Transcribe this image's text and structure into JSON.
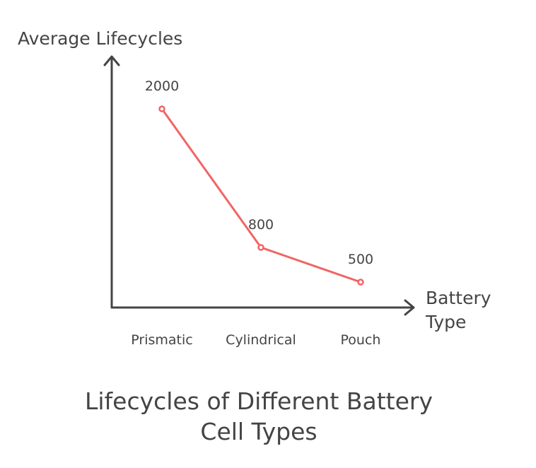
{
  "chart_data": {
    "type": "line",
    "title": "Lifecycles of Different Battery Cell Types",
    "xlabel": "Battery Type",
    "ylabel": "Average Lifecycles",
    "categories": [
      "Prismatic",
      "Cylindrical",
      "Pouch"
    ],
    "series": [
      {
        "values": [
          2000,
          800,
          500
        ]
      }
    ],
    "data_labels": [
      "2000",
      "800",
      "500"
    ],
    "grid": false,
    "line_color": "#f26464",
    "axis_color": "#444444"
  }
}
